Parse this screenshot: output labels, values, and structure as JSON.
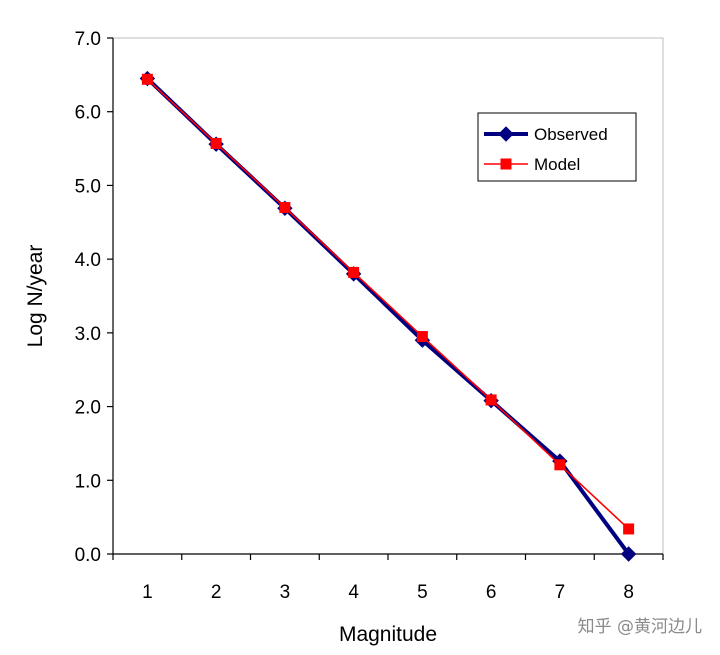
{
  "chart_data": {
    "type": "line",
    "xlabel": "Magnitude",
    "ylabel": "Log N/year",
    "x": [
      1,
      2,
      3,
      4,
      5,
      6,
      7,
      8
    ],
    "xticks": [
      "1",
      "2",
      "3",
      "4",
      "5",
      "6",
      "7",
      "8"
    ],
    "xlim": [
      0.5,
      8.5
    ],
    "ylim": [
      0,
      7
    ],
    "yticks": [
      "0.0",
      "1.0",
      "2.0",
      "3.0",
      "4.0",
      "5.0",
      "6.0",
      "7.0"
    ],
    "grid": false,
    "legend_position": "top-right",
    "series": [
      {
        "name": "Observed",
        "marker": "diamond",
        "color": "#000080",
        "values": [
          6.45,
          5.56,
          4.69,
          3.8,
          2.9,
          2.08,
          1.26,
          0.0
        ]
      },
      {
        "name": "Model",
        "marker": "square",
        "color": "#ff0000",
        "values": [
          6.44,
          5.57,
          4.7,
          3.82,
          2.95,
          2.09,
          1.21,
          0.34
        ]
      }
    ]
  },
  "watermark": "知乎 @黄河边儿"
}
